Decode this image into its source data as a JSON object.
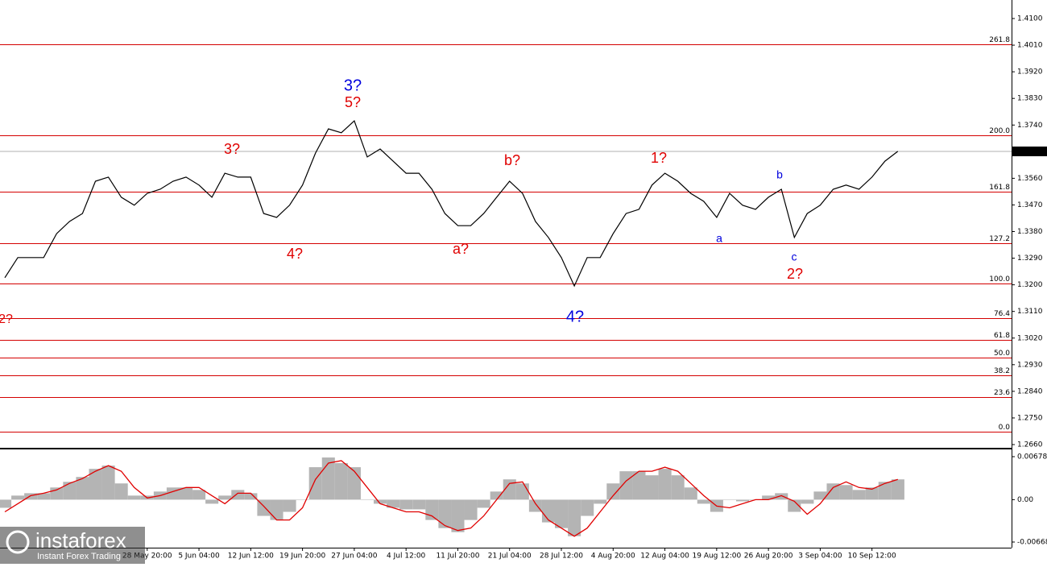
{
  "chart_data": [
    {
      "type": "line",
      "color": "#000000",
      "values": [
        1.3224,
        1.3292,
        1.3292,
        1.3292,
        1.3373,
        1.3414,
        1.3441,
        1.355,
        1.3564,
        1.3496,
        1.3469,
        1.3509,
        1.3523,
        1.355,
        1.3564,
        1.3537,
        1.3496,
        1.3577,
        1.3564,
        1.3564,
        1.3441,
        1.3428,
        1.3469,
        1.3537,
        1.3645,
        1.3727,
        1.3714,
        1.3754,
        1.3632,
        1.3659,
        1.3618,
        1.3577,
        1.3577,
        1.3523,
        1.3441,
        1.34,
        1.34,
        1.3441,
        1.3496,
        1.355,
        1.3509,
        1.3414,
        1.336,
        1.3292,
        1.3196,
        1.3292,
        1.3292,
        1.3373,
        1.3441,
        1.3455,
        1.3537,
        1.3577,
        1.355,
        1.3509,
        1.3482,
        1.3428,
        1.3509,
        1.3469,
        1.3455,
        1.3496,
        1.3523,
        1.336,
        1.3441,
        1.3469,
        1.3523,
        1.3537,
        1.3523,
        1.3564,
        1.3618,
        1.3651
      ],
      "ylim": [
        1.266,
        1.41
      ],
      "yticks": [
        {
          "value": 1.41,
          "label": "1.4100"
        },
        {
          "value": 1.401,
          "label": "1.4010"
        },
        {
          "value": 1.392,
          "label": "1.3920"
        },
        {
          "value": 1.383,
          "label": "1.3830"
        },
        {
          "value": 1.374,
          "label": "1.3740"
        },
        {
          "value": 1.356,
          "label": "1.3560"
        },
        {
          "value": 1.347,
          "label": "1.3470"
        },
        {
          "value": 1.338,
          "label": "1.3380"
        },
        {
          "value": 1.329,
          "label": "1.3290"
        },
        {
          "value": 1.32,
          "label": "1.3200"
        },
        {
          "value": 1.311,
          "label": "1.3110"
        },
        {
          "value": 1.302,
          "label": "1.3020"
        },
        {
          "value": 1.293,
          "label": "1.2930"
        },
        {
          "value": 1.284,
          "label": "1.2840"
        },
        {
          "value": 1.275,
          "label": "1.2750"
        },
        {
          "value": 1.266,
          "label": "1.2660"
        }
      ],
      "last_price": 1.3651,
      "fib_color": "#d40000",
      "fib_levels": [
        {
          "label": "261.8",
          "price": 1.4013
        },
        {
          "label": "200.0",
          "price": 1.3705
        },
        {
          "label": "161.8",
          "price": 1.3515
        },
        {
          "label": "127.2",
          "price": 1.3341
        },
        {
          "label": "100.0",
          "price": 1.3204
        },
        {
          "label": "76.4",
          "price": 1.3087
        },
        {
          "label": "61.8",
          "price": 1.3014
        },
        {
          "label": "50.0",
          "price": 1.2954
        },
        {
          "label": "38.2",
          "price": 1.2894
        },
        {
          "label": "23.6",
          "price": 1.2821
        },
        {
          "label": "0.0",
          "price": 1.2704
        }
      ],
      "annotations": [
        {
          "text": "2?",
          "color": "#e00000"
        },
        {
          "text": "3?",
          "color": "#e00000"
        },
        {
          "text": "4?",
          "color": "#e00000"
        },
        {
          "text": "3?",
          "color": "#0000dd"
        },
        {
          "text": "5?",
          "color": "#e00000"
        },
        {
          "text": "a?",
          "color": "#e00000"
        },
        {
          "text": "b?",
          "color": "#e00000"
        },
        {
          "text": "4?",
          "color": "#0000dd"
        },
        {
          "text": "1?",
          "color": "#e00000"
        },
        {
          "text": "a",
          "color": "#0000dd"
        },
        {
          "text": "b",
          "color": "#0000dd"
        },
        {
          "text": "c",
          "color": "#0000dd"
        },
        {
          "text": "2?",
          "color": "#e00000"
        }
      ]
    },
    {
      "type": "macd",
      "categories": [
        null,
        null,
        null,
        null,
        null,
        null,
        null,
        null,
        null,
        null,
        null,
        "28 May 20:00",
        null,
        null,
        null,
        "5 Jun 04:00",
        null,
        null,
        null,
        "12 Jun 12:00",
        null,
        null,
        null,
        "19 Jun 20:00",
        null,
        null,
        null,
        "27 Jun 04:00",
        null,
        null,
        null,
        "4 Jul 12:00",
        null,
        null,
        null,
        "11 Jul 20:00",
        null,
        null,
        null,
        "21 Jul 04:00",
        null,
        null,
        null,
        "28 Jul 12:00",
        null,
        null,
        null,
        "4 Aug 20:00",
        null,
        null,
        null,
        "12 Aug 04:00",
        null,
        null,
        null,
        "19 Aug 12:00",
        null,
        null,
        null,
        "26 Aug 20:00",
        null,
        null,
        null,
        "3 Sep 04:00",
        null,
        null,
        null,
        "10 Sep 12:00",
        null,
        null
      ],
      "histogram": {
        "color": "#b4b4b4",
        "values": [
          -0.00128,
          0.00064,
          0.00102,
          0.00102,
          0.00192,
          0.00281,
          0.00358,
          0.00486,
          0.00537,
          0.00256,
          0.00064,
          0.00064,
          0.00128,
          0.00192,
          0.00192,
          0.00153,
          -0.00064,
          0.00064,
          0.00153,
          0.00102,
          -0.00256,
          -0.0032,
          -0.00192,
          0,
          0.00512,
          0.00665,
          0.00576,
          0.00512,
          0,
          -0.00064,
          -0.00128,
          -0.00153,
          -0.00153,
          -0.0032,
          -0.00448,
          -0.00512,
          -0.0032,
          -0.00128,
          0.00128,
          0.0032,
          0.00256,
          -0.00192,
          -0.00358,
          -0.00448,
          -0.00576,
          -0.00256,
          -0.00064,
          0.00256,
          0.00448,
          0.00448,
          0.00384,
          0.00486,
          0.00384,
          0.00192,
          -0.00064,
          -0.00192,
          0,
          -0.00026,
          0,
          0.00064,
          0.00102,
          -0.00192,
          -0.00064,
          0.00128,
          0.00256,
          0.0023,
          0.00153,
          0.00192,
          0.00281,
          0.0032
        ]
      },
      "signal": {
        "color": "#e00000",
        "values": [
          -0.00192,
          -0.00064,
          0.00064,
          0.00102,
          0.00153,
          0.00256,
          0.00333,
          0.00448,
          0.00537,
          0.00448,
          0.00192,
          0.00026,
          0.00064,
          0.00128,
          0.00192,
          0.00192,
          0.00064,
          -0.00064,
          0.00102,
          0.00102,
          -0.00102,
          -0.0032,
          -0.0032,
          -0.00128,
          0.0032,
          0.00576,
          0.00614,
          0.00448,
          0.00192,
          -0.00064,
          -0.00128,
          -0.00192,
          -0.00192,
          -0.00256,
          -0.00409,
          -0.00486,
          -0.00448,
          -0.00256,
          0,
          0.00256,
          0.00281,
          -0.00064,
          -0.0032,
          -0.00448,
          -0.00576,
          -0.00448,
          -0.00192,
          0.00064,
          0.00294,
          0.00448,
          0.00448,
          0.00512,
          0.00448,
          0.00256,
          0.00064,
          -0.00102,
          -0.00128,
          -0.00064,
          0,
          0,
          0.00064,
          -0.00026,
          -0.0023,
          -0.00064,
          0.00192,
          0.00281,
          0.00192,
          0.00166,
          0.00256,
          0.0032
        ]
      },
      "ylim": [
        -0.00668,
        0.00678
      ],
      "yticks": [
        0.00678,
        {
          "value": 0,
          "label": "0.00"
        },
        -0.00668
      ]
    }
  ],
  "watermark": {
    "brand": "instaforex",
    "tagline": "Instant Forex Trading"
  }
}
